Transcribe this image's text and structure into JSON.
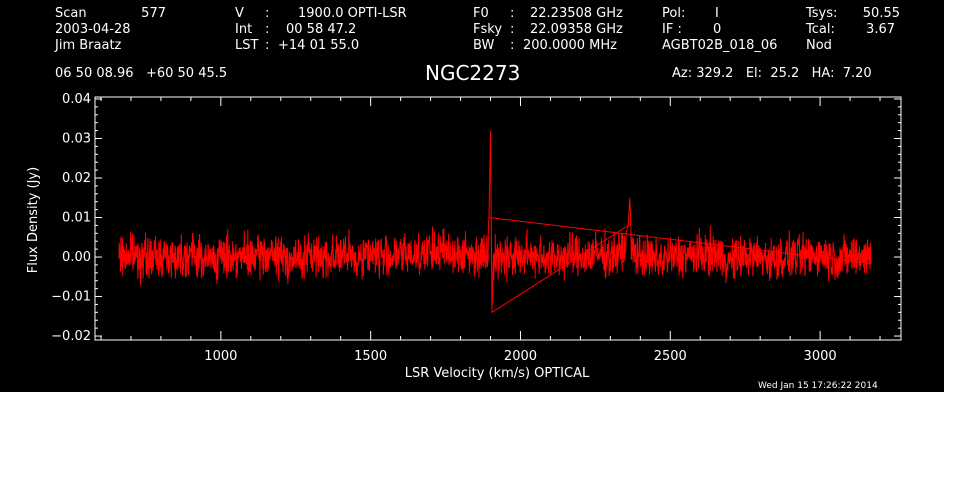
{
  "header": {
    "scan_label": "Scan",
    "scan_value": "577",
    "date": "2003-04-28",
    "observer": "Jim Braatz",
    "v_label": "V",
    "v_sep": ":",
    "v_value": "1900.0 OPTI-LSR",
    "int_label": "Int",
    "int_sep": ":",
    "int_value": "00 58 47.2",
    "lst_label": "LST",
    "lst_sep": ":",
    "lst_value": "+14 01 55.0",
    "f0_label": "F0",
    "f0_sep": ":",
    "f0_value": "22.23508 GHz",
    "fsky_label": "Fsky",
    "fsky_sep": ":",
    "fsky_value": "22.09358 GHz",
    "bw_label": "BW",
    "bw_sep": ":",
    "bw_value": "200.0000 MHz",
    "pol_label": "Pol:",
    "pol_value": "I",
    "if_label": "IF :",
    "if_value": "0",
    "project": "AGBT02B_018_06",
    "tsys_label": "Tsys:",
    "tsys_value": "50.55",
    "tcal_label": "Tcal:",
    "tcal_value": "3.67",
    "proc": "Nod",
    "coords": "06 50 08.96   +60 50 45.5",
    "source": "NGC2273",
    "az_el_ha": "Az: 329.2   El:  25.2   HA:  7.20"
  },
  "timestamp": "Wed Jan 15 17:26:22 2014",
  "colors": {
    "background": "#000000",
    "axes": "#ffffff",
    "series": "#ff0000"
  },
  "chart_data": {
    "type": "line",
    "title": "NGC2273",
    "xlabel": "LSR Velocity (km/s) OPTICAL",
    "ylabel": "Flux Density (Jy)",
    "xlim": [
      580,
      3270
    ],
    "ylim": [
      -0.021,
      0.0405
    ],
    "x_ticks": [
      1000,
      1500,
      2000,
      2500,
      3000
    ],
    "y_ticks": [
      -0.02,
      -0.01,
      0.0,
      0.01,
      0.02,
      0.03,
      0.04
    ],
    "y_tick_labels": [
      "−0.02",
      "−0.01",
      "0.00",
      "0.01",
      "0.02",
      "0.03",
      "0.04"
    ],
    "grid": false,
    "series": [
      {
        "color": "#ff0000",
        "x": [
          660,
          700,
          750,
          800,
          850,
          900,
          950,
          1000,
          1050,
          1100,
          1150,
          1200,
          1250,
          1300,
          1350,
          1400,
          1450,
          1500,
          1550,
          1600,
          1650,
          1700,
          1750,
          1800,
          1850,
          1880,
          1890,
          1895,
          1900,
          1905,
          1910,
          1920,
          1950,
          2000,
          2050,
          2100,
          2150,
          2200,
          2250,
          2300,
          2340,
          2360,
          2365,
          2370,
          2400,
          2450,
          2500,
          2550,
          2600,
          2650,
          2700,
          2750,
          2800,
          2850,
          2900,
          2950,
          3000,
          3050,
          3100,
          3150,
          3170
        ],
        "y": [
          0.0,
          0.002,
          -0.001,
          0.001,
          0.0,
          0.003,
          -0.002,
          0.0,
          0.001,
          -0.001,
          0.002,
          0.0,
          -0.002,
          0.001,
          0.0,
          0.002,
          -0.001,
          0.003,
          0.0,
          0.001,
          0.002,
          0.003,
          0.004,
          0.002,
          0.001,
          0.002,
          0.003,
          0.01,
          0.032,
          -0.014,
          0.0,
          -0.002,
          0.001,
          0.0,
          0.002,
          -0.001,
          0.001,
          0.0,
          0.002,
          0.001,
          0.003,
          0.008,
          0.015,
          0.004,
          0.001,
          -0.002,
          0.0,
          0.001,
          0.002,
          0.003,
          -0.003,
          0.001,
          0.0,
          -0.002,
          0.001,
          0.0,
          0.002,
          -0.001,
          0.0,
          0.001,
          0.0
        ]
      }
    ]
  }
}
